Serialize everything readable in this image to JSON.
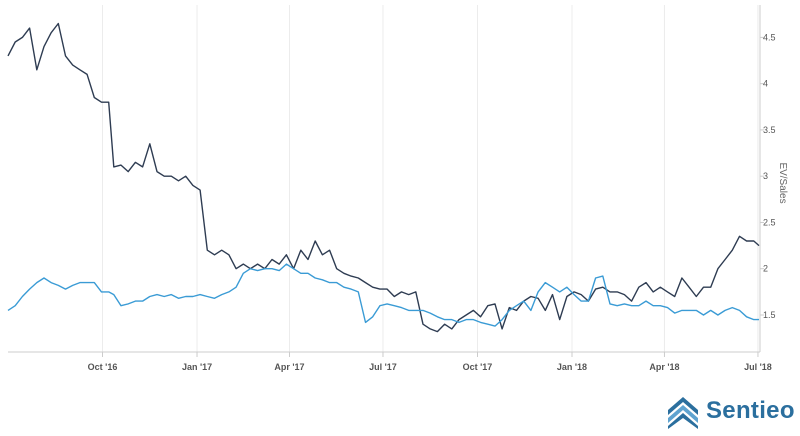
{
  "brand": {
    "name": "Sentieo"
  },
  "colors": {
    "series_dark": "#2e3c52",
    "series_light": "#3a9bd5",
    "grid": "#ececec",
    "brand": "#2b6f9e"
  },
  "chart_data": {
    "type": "line",
    "ylabel": "EV/Sales",
    "ylim": [
      1.1,
      4.85
    ],
    "yticks": [
      1.5,
      2,
      2.5,
      3,
      3.5,
      4,
      4.5
    ],
    "ytick_labels": [
      "1.5",
      "2",
      "2.5",
      "3",
      "3.5",
      "4",
      "4.5"
    ],
    "xlim": [
      "2016-07-01",
      "2018-07-03"
    ],
    "xticks": [
      "2016-10-01",
      "2017-01-01",
      "2017-04-01",
      "2017-07-01",
      "2017-10-01",
      "2018-01-01",
      "2018-04-01",
      "2018-07-01"
    ],
    "xtick_labels": [
      "Oct '16",
      "Jan '17",
      "Apr '17",
      "Jul '17",
      "Oct '17",
      "Jan '18",
      "Apr '18",
      "Jul '18"
    ],
    "grid": true,
    "y_axis_side": "right",
    "series": [
      {
        "color": "#2e3c52",
        "x": [
          "2016-07-01",
          "2016-07-08",
          "2016-07-15",
          "2016-07-22",
          "2016-07-29",
          "2016-08-05",
          "2016-08-12",
          "2016-08-19",
          "2016-08-26",
          "2016-09-02",
          "2016-09-09",
          "2016-09-16",
          "2016-09-23",
          "2016-09-30",
          "2016-10-07",
          "2016-10-12",
          "2016-10-19",
          "2016-10-26",
          "2016-11-02",
          "2016-11-09",
          "2016-11-16",
          "2016-11-23",
          "2016-11-30",
          "2016-12-07",
          "2016-12-14",
          "2016-12-21",
          "2016-12-28",
          "2017-01-04",
          "2017-01-11",
          "2017-01-18",
          "2017-01-25",
          "2017-02-01",
          "2017-02-08",
          "2017-02-15",
          "2017-02-22",
          "2017-03-01",
          "2017-03-08",
          "2017-03-15",
          "2017-03-22",
          "2017-03-29",
          "2017-04-05",
          "2017-04-12",
          "2017-04-19",
          "2017-04-26",
          "2017-05-03",
          "2017-05-10",
          "2017-05-17",
          "2017-05-24",
          "2017-05-31",
          "2017-06-07",
          "2017-06-14",
          "2017-06-21",
          "2017-06-28",
          "2017-07-05",
          "2017-07-12",
          "2017-07-19",
          "2017-07-26",
          "2017-08-02",
          "2017-08-09",
          "2017-08-16",
          "2017-08-23",
          "2017-08-30",
          "2017-09-06",
          "2017-09-13",
          "2017-09-20",
          "2017-09-27",
          "2017-10-04",
          "2017-10-11",
          "2017-10-18",
          "2017-10-25",
          "2017-11-01",
          "2017-11-08",
          "2017-11-15",
          "2017-11-22",
          "2017-11-29",
          "2017-12-06",
          "2017-12-13",
          "2017-12-20",
          "2017-12-27",
          "2018-01-03",
          "2018-01-10",
          "2018-01-17",
          "2018-01-24",
          "2018-01-31",
          "2018-02-07",
          "2018-02-14",
          "2018-02-21",
          "2018-02-28",
          "2018-03-07",
          "2018-03-14",
          "2018-03-21",
          "2018-03-28",
          "2018-04-04",
          "2018-04-11",
          "2018-04-18",
          "2018-04-25",
          "2018-05-02",
          "2018-05-09",
          "2018-05-16",
          "2018-05-23",
          "2018-05-30",
          "2018-06-06",
          "2018-06-13",
          "2018-06-20",
          "2018-06-27",
          "2018-07-02"
        ],
        "values": [
          4.3,
          4.45,
          4.5,
          4.6,
          4.15,
          4.4,
          4.55,
          4.65,
          4.3,
          4.2,
          4.15,
          4.1,
          3.85,
          3.8,
          3.8,
          3.1,
          3.12,
          3.05,
          3.15,
          3.1,
          3.35,
          3.05,
          3.0,
          3.0,
          2.95,
          3.0,
          2.9,
          2.85,
          2.2,
          2.15,
          2.2,
          2.15,
          2.0,
          2.05,
          2.0,
          2.05,
          2.0,
          2.1,
          2.05,
          2.15,
          2.0,
          2.2,
          2.1,
          2.3,
          2.15,
          2.2,
          2.0,
          1.95,
          1.92,
          1.9,
          1.85,
          1.8,
          1.78,
          1.78,
          1.7,
          1.75,
          1.72,
          1.75,
          1.4,
          1.35,
          1.32,
          1.4,
          1.35,
          1.45,
          1.5,
          1.55,
          1.48,
          1.6,
          1.62,
          1.35,
          1.58,
          1.55,
          1.65,
          1.7,
          1.68,
          1.55,
          1.72,
          1.45,
          1.7,
          1.75,
          1.72,
          1.65,
          1.78,
          1.8,
          1.75,
          1.75,
          1.72,
          1.65,
          1.8,
          1.85,
          1.75,
          1.8,
          1.75,
          1.7,
          1.9,
          1.8,
          1.7,
          1.8,
          1.8,
          2.0,
          2.1,
          2.2,
          2.35,
          2.3,
          2.3,
          2.25
        ]
      },
      {
        "color": "#3a9bd5",
        "x": [
          "2016-07-01",
          "2016-07-08",
          "2016-07-15",
          "2016-07-22",
          "2016-07-29",
          "2016-08-05",
          "2016-08-12",
          "2016-08-19",
          "2016-08-26",
          "2016-09-02",
          "2016-09-09",
          "2016-09-16",
          "2016-09-23",
          "2016-09-30",
          "2016-10-07",
          "2016-10-12",
          "2016-10-19",
          "2016-10-26",
          "2016-11-02",
          "2016-11-09",
          "2016-11-16",
          "2016-11-23",
          "2016-11-30",
          "2016-12-07",
          "2016-12-14",
          "2016-12-21",
          "2016-12-28",
          "2017-01-04",
          "2017-01-11",
          "2017-01-18",
          "2017-01-25",
          "2017-02-01",
          "2017-02-08",
          "2017-02-15",
          "2017-02-22",
          "2017-03-01",
          "2017-03-08",
          "2017-03-15",
          "2017-03-22",
          "2017-03-29",
          "2017-04-05",
          "2017-04-12",
          "2017-04-19",
          "2017-04-26",
          "2017-05-03",
          "2017-05-10",
          "2017-05-17",
          "2017-05-24",
          "2017-05-31",
          "2017-06-07",
          "2017-06-14",
          "2017-06-21",
          "2017-06-28",
          "2017-07-05",
          "2017-07-12",
          "2017-07-19",
          "2017-07-26",
          "2017-08-02",
          "2017-08-09",
          "2017-08-16",
          "2017-08-23",
          "2017-08-30",
          "2017-09-06",
          "2017-09-13",
          "2017-09-20",
          "2017-09-27",
          "2017-10-04",
          "2017-10-11",
          "2017-10-18",
          "2017-10-25",
          "2017-11-01",
          "2017-11-08",
          "2017-11-15",
          "2017-11-22",
          "2017-11-29",
          "2017-12-06",
          "2017-12-13",
          "2017-12-20",
          "2017-12-27",
          "2018-01-03",
          "2018-01-10",
          "2018-01-17",
          "2018-01-24",
          "2018-01-31",
          "2018-02-07",
          "2018-02-14",
          "2018-02-21",
          "2018-02-28",
          "2018-03-07",
          "2018-03-14",
          "2018-03-21",
          "2018-03-28",
          "2018-04-04",
          "2018-04-11",
          "2018-04-18",
          "2018-04-25",
          "2018-05-02",
          "2018-05-09",
          "2018-05-16",
          "2018-05-23",
          "2018-05-30",
          "2018-06-06",
          "2018-06-13",
          "2018-06-20",
          "2018-06-27",
          "2018-07-02"
        ],
        "values": [
          1.55,
          1.6,
          1.7,
          1.78,
          1.85,
          1.9,
          1.85,
          1.82,
          1.78,
          1.82,
          1.85,
          1.85,
          1.85,
          1.75,
          1.75,
          1.72,
          1.6,
          1.62,
          1.65,
          1.65,
          1.7,
          1.72,
          1.7,
          1.72,
          1.68,
          1.7,
          1.7,
          1.72,
          1.7,
          1.68,
          1.72,
          1.75,
          1.8,
          1.95,
          2.0,
          1.98,
          2.0,
          2.0,
          1.98,
          2.05,
          2.0,
          1.95,
          1.95,
          1.9,
          1.88,
          1.85,
          1.85,
          1.8,
          1.78,
          1.75,
          1.42,
          1.48,
          1.6,
          1.62,
          1.6,
          1.58,
          1.55,
          1.55,
          1.55,
          1.52,
          1.48,
          1.45,
          1.45,
          1.42,
          1.45,
          1.45,
          1.42,
          1.4,
          1.38,
          1.45,
          1.55,
          1.6,
          1.65,
          1.55,
          1.75,
          1.85,
          1.8,
          1.75,
          1.8,
          1.72,
          1.65,
          1.65,
          1.9,
          1.92,
          1.62,
          1.6,
          1.62,
          1.6,
          1.6,
          1.65,
          1.6,
          1.6,
          1.58,
          1.52,
          1.55,
          1.55,
          1.55,
          1.5,
          1.55,
          1.5,
          1.55,
          1.58,
          1.55,
          1.48,
          1.45,
          1.45
        ]
      }
    ]
  }
}
